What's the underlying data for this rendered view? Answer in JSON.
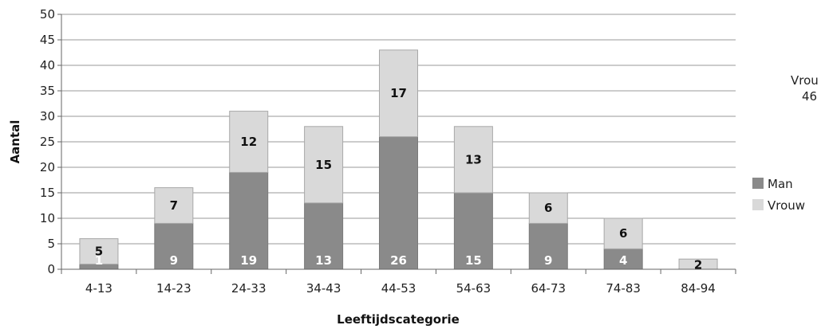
{
  "chart_data": {
    "type": "bar",
    "stacked": true,
    "categories": [
      "4-13",
      "14-23",
      "24-33",
      "34-43",
      "44-53",
      "54-63",
      "64-73",
      "74-83",
      "84-94"
    ],
    "series": [
      {
        "name": "Man",
        "values": [
          1,
          9,
          19,
          13,
          26,
          15,
          9,
          4,
          0
        ],
        "color": "#8a8a8a",
        "labels": [
          "1",
          "9",
          "19",
          "13",
          "26",
          "15",
          "9",
          "4",
          ""
        ]
      },
      {
        "name": "Vrouw",
        "values": [
          5,
          7,
          12,
          15,
          17,
          13,
          6,
          6,
          2
        ],
        "color": "#d9d9d9",
        "labels": [
          "5",
          "7",
          "12",
          "15",
          "17",
          "13",
          "6",
          "6",
          "2"
        ]
      }
    ],
    "xlabel": "Leeftijdscategorie",
    "ylabel": "Aantal",
    "ylim": [
      0,
      50
    ],
    "yticks": [
      0,
      5,
      10,
      15,
      20,
      25,
      30,
      35,
      40,
      45,
      50
    ],
    "grid": true,
    "legend": "right",
    "cropped_text": {
      "line1": "Vrou",
      "line2": "46"
    }
  }
}
